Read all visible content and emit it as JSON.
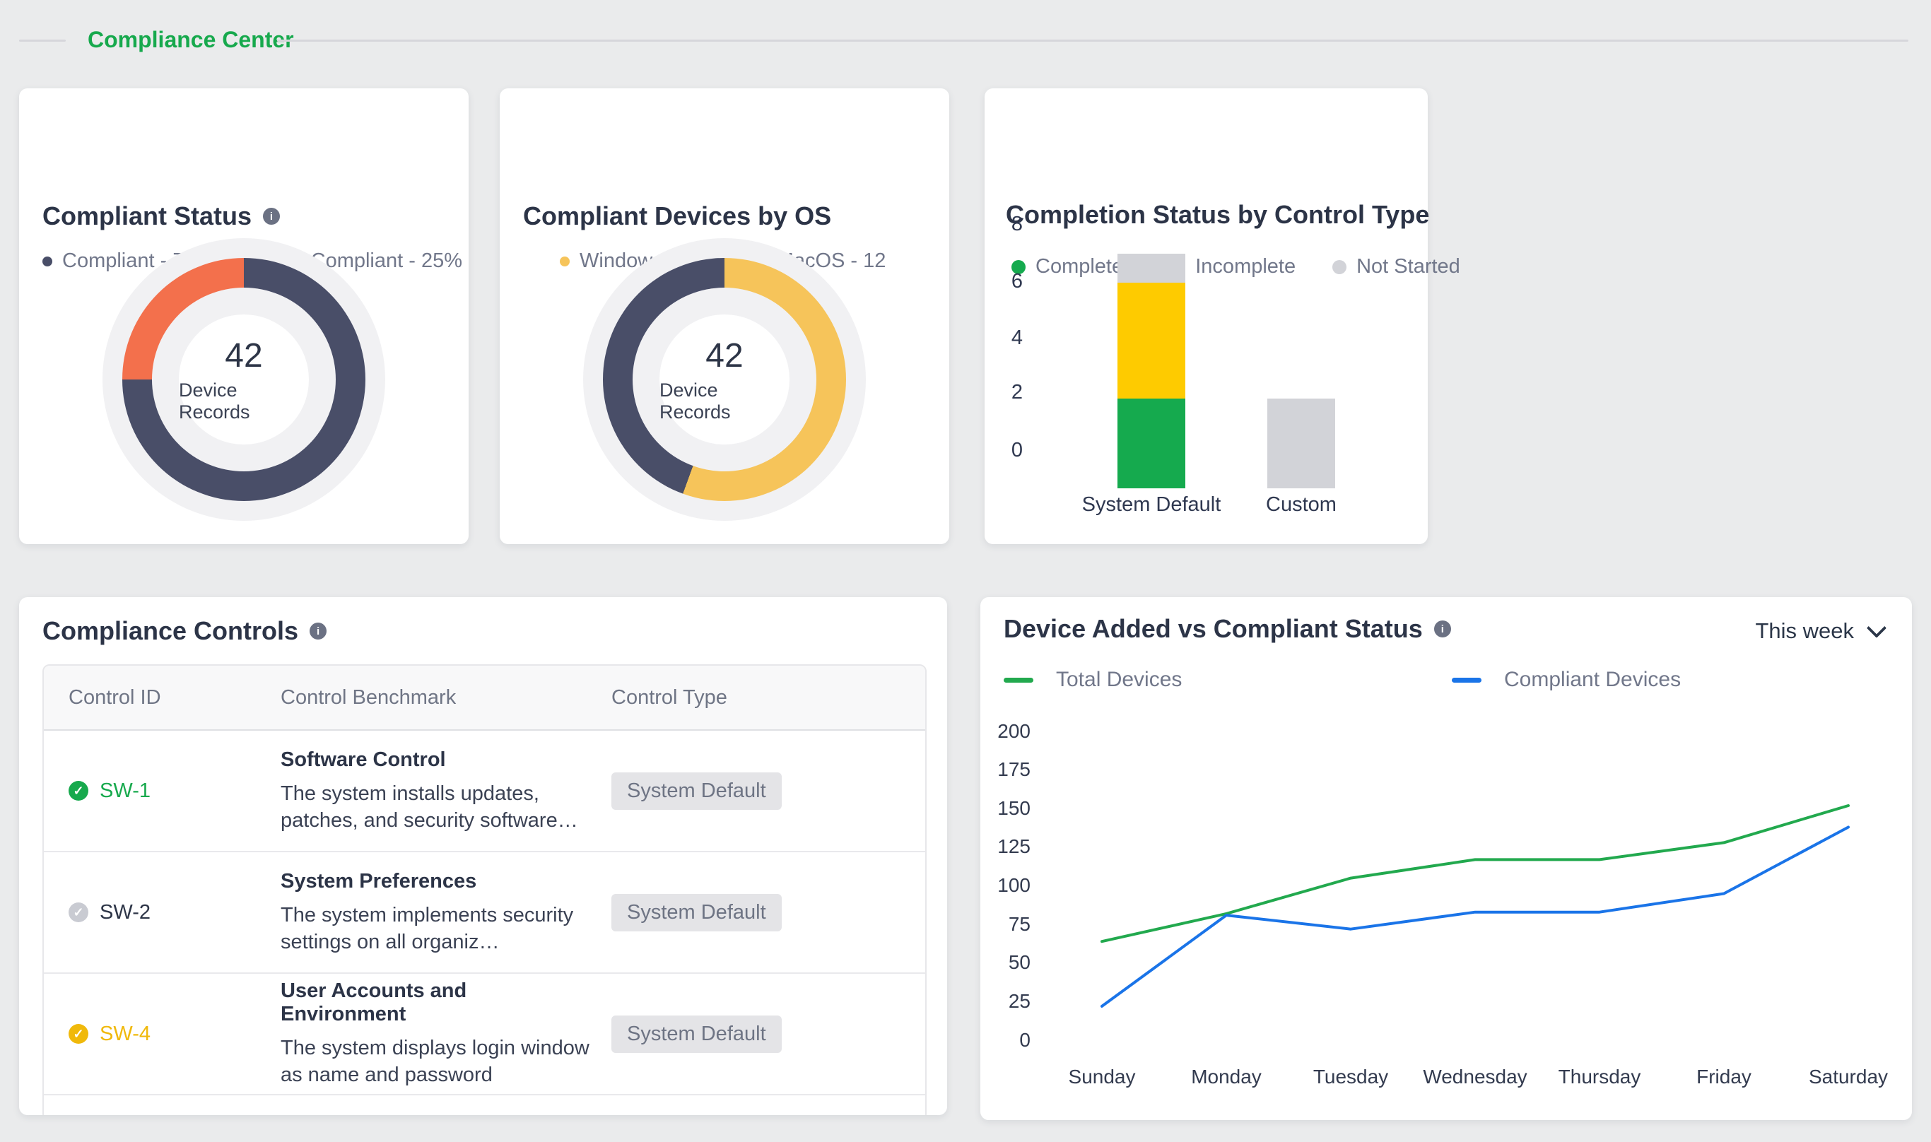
{
  "page_header": {
    "title": "Compliance Center"
  },
  "cards": {
    "compliant_status": {
      "title": "Compliant Status",
      "legend": [
        {
          "label": "Compliant - 75%",
          "color": "#494e68"
        },
        {
          "label": "Non Compliant - 25%",
          "color": "#f3704c"
        }
      ],
      "center_value": "42",
      "center_label": "Device Records"
    },
    "devices_by_os": {
      "title": "Compliant Devices by OS",
      "legend": [
        {
          "label": "Windows - 15",
          "color": "#f6c45a"
        },
        {
          "label": "MacOS - 12",
          "color": "#494e68"
        }
      ],
      "center_value": "42",
      "center_label": "Device Records"
    },
    "completion_status": {
      "title": "Completion Status by Control Type",
      "legend": [
        {
          "label": "Completed",
          "color": "#15aa4e"
        },
        {
          "label": "Incomplete",
          "color": "#fecb00"
        },
        {
          "label": "Not Started",
          "color": "#d2d3d8"
        }
      ],
      "y_ticks": [
        "8",
        "6",
        "4",
        "2",
        "0"
      ],
      "categories": [
        "System Default",
        "Custom"
      ]
    },
    "compliance_controls": {
      "title": "Compliance Controls",
      "columns": [
        "Control ID",
        "Control Benchmark",
        "Control Type"
      ],
      "rows": [
        {
          "id": "SW-1",
          "status": "completed",
          "icon_color": "#17a94d",
          "id_color": "#17a94d",
          "benchmark_title": "Software Control",
          "benchmark_desc": "The system installs updates, patches, and security software…",
          "control_type": "System Default"
        },
        {
          "id": "SW-2",
          "status": "not-started",
          "icon_color": "#c9cbd2",
          "id_color": "#2d3547",
          "benchmark_title": "System Preferences",
          "benchmark_desc": "The system implements security settings on all organiz…",
          "control_type": "System Default"
        },
        {
          "id": "SW-4",
          "status": "incomplete",
          "icon_color": "#f0b90b",
          "id_color": "#f0b90b",
          "benchmark_title": "User Accounts and Environment",
          "benchmark_desc": "The system displays login window as name and password",
          "control_type": "System Default"
        }
      ]
    },
    "device_added": {
      "title": "Device Added vs Compliant Status",
      "range_selector": "This week",
      "legend": [
        {
          "label": "Total Devices",
          "color": "#22a94e"
        },
        {
          "label": "Compliant Devices",
          "color": "#1a74e8"
        }
      ],
      "y_ticks": [
        "200",
        "175",
        "150",
        "125",
        "100",
        "75",
        "50",
        "25",
        "0"
      ],
      "days": [
        "Sunday",
        "Monday",
        "Tuesday",
        "Wednesday",
        "Thursday",
        "Friday",
        "Saturday"
      ]
    }
  },
  "chart_data": [
    {
      "type": "pie",
      "title": "Compliant Status",
      "labels": [
        "Compliant",
        "Non Compliant"
      ],
      "values": [
        75,
        25
      ],
      "unit": "%",
      "colors": [
        "#494e68",
        "#f3704c"
      ],
      "center_text": "42 Device Records"
    },
    {
      "type": "pie",
      "title": "Compliant Devices by OS",
      "labels": [
        "Windows",
        "MacOS"
      ],
      "values": [
        15,
        12
      ],
      "colors": [
        "#f6c45a",
        "#494e68"
      ],
      "center_text": "42 Device Records"
    },
    {
      "type": "bar",
      "stacked": true,
      "title": "Completion Status by Control Type",
      "categories": [
        "System Default",
        "Custom"
      ],
      "series": [
        {
          "name": "Completed",
          "color": "#15aa4e",
          "values": [
            2,
            0
          ]
        },
        {
          "name": "Incomplete",
          "color": "#fecb00",
          "values": [
            4,
            0
          ]
        },
        {
          "name": "Not Started",
          "color": "#d2d3d8",
          "values": [
            1,
            2
          ]
        }
      ],
      "ylim": [
        0,
        8
      ],
      "grid": false,
      "legend_position": "top"
    },
    {
      "type": "line",
      "title": "Device Added vs Compliant Status",
      "x": [
        "Sunday",
        "Monday",
        "Tuesday",
        "Wednesday",
        "Thursday",
        "Friday",
        "Saturday"
      ],
      "series": [
        {
          "name": "Total Devices",
          "color": "#22a94e",
          "values": [
            64,
            82,
            105,
            117,
            117,
            128,
            152
          ]
        },
        {
          "name": "Compliant Devices",
          "color": "#1a74e8",
          "values": [
            22,
            81,
            72,
            83,
            83,
            95,
            138
          ]
        }
      ],
      "ylim": [
        0,
        200
      ],
      "grid": false,
      "legend_position": "top"
    }
  ]
}
